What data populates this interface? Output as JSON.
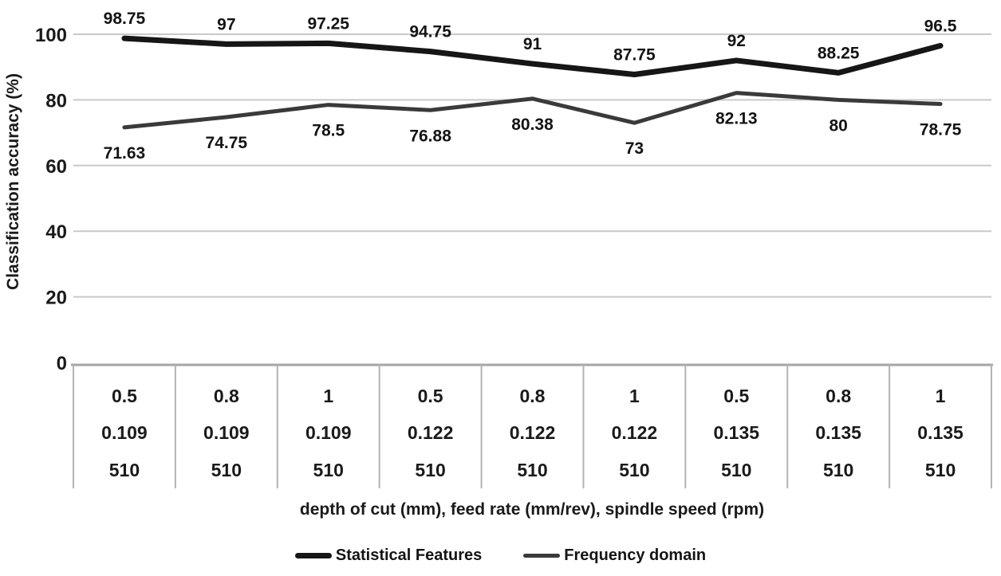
{
  "chart_data": {
    "type": "line",
    "title": "",
    "ylabel": "Classification accuracy (%)",
    "xlabel": "depth of cut (mm), feed rate (mm/rev), spindle speed (rpm)",
    "ylim": [
      0,
      100
    ],
    "yticks": [
      0,
      20,
      40,
      60,
      80,
      100
    ],
    "grid": true,
    "data_labels": true,
    "legend_position": "bottom",
    "categories": [
      [
        "0.5",
        "0.109",
        "510"
      ],
      [
        "0.8",
        "0.109",
        "510"
      ],
      [
        "1",
        "0.109",
        "510"
      ],
      [
        "0.5",
        "0.122",
        "510"
      ],
      [
        "0.8",
        "0.122",
        "510"
      ],
      [
        "1",
        "0.122",
        "510"
      ],
      [
        "0.5",
        "0.135",
        "510"
      ],
      [
        "0.8",
        "0.135",
        "510"
      ],
      [
        "1",
        "0.135",
        "510"
      ]
    ],
    "series": [
      {
        "name": "Statistical Features",
        "color": "#161616",
        "line_width": 7,
        "label_position": "above",
        "values": [
          98.75,
          97,
          97.25,
          94.75,
          91,
          87.75,
          92,
          88.25,
          96.5
        ]
      },
      {
        "name": "Frequency domain",
        "color": "#3a3a3a",
        "line_width": 5,
        "label_position": "below",
        "values": [
          71.63,
          74.75,
          78.5,
          76.88,
          80.38,
          73,
          82.13,
          80,
          78.75
        ]
      }
    ]
  },
  "colors": {
    "background": "#ffffff",
    "gridline": "#c9c9c9",
    "table_border": "#a6a6a6",
    "table_divider": "#b3b3b3",
    "text": "#1a1a1a"
  }
}
